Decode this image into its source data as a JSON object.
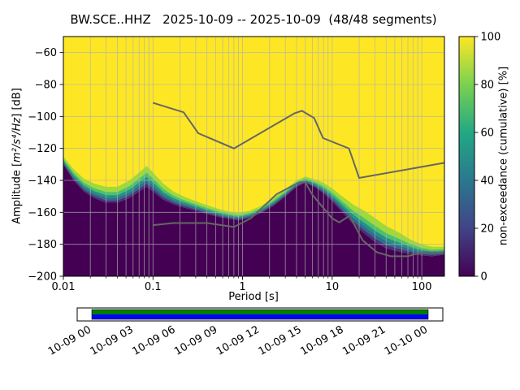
{
  "chart_data": {
    "type": "heatmap",
    "title": "BW.SCE..HHZ   2025-10-09 -- 2025-10-09  (48/48 segments)",
    "xlabel": "Period [s]",
    "ylabel_parts": [
      "Amplitude [",
      "m²/s⁴/Hz",
      "] [dB]"
    ],
    "xscale": "log",
    "grid": true,
    "xlim": [
      0.01,
      179
    ],
    "ylim": [
      -200,
      -50
    ],
    "xticks": {
      "values": [
        0.01,
        0.1,
        1,
        10,
        100
      ],
      "labels": [
        "0.01",
        "0.1",
        "1",
        "10",
        "100"
      ]
    },
    "yticks": {
      "values": [
        -200,
        -180,
        -160,
        -140,
        -120,
        -100,
        -80,
        -60
      ],
      "labels": [
        "−200",
        "−180",
        "−160",
        "−140",
        "−120",
        "−100",
        "−80",
        "−60"
      ]
    },
    "colors": {
      "grid": "#b0b0b0",
      "frame": "#000000",
      "noise_model": "#666666"
    },
    "colorbar": {
      "label": "non-exceedance (cumulative) [%]",
      "min": 0,
      "max": 100,
      "ticks": [
        0,
        20,
        40,
        60,
        80,
        100
      ],
      "colormap": "viridis",
      "gradient": [
        "#440154",
        "#414487",
        "#2a788e",
        "#22a884",
        "#7ad151",
        "#fde725"
      ]
    },
    "histogram": {
      "description": "cumulative PPSD non-exceedance field: yellow ~100% above transition, dark ~0% below dark_top_db; transition_width_db = dB span of viridis color transition",
      "color_high": "#fde725",
      "color_low": "#440154",
      "periods": [
        0.01,
        0.013,
        0.017,
        0.022,
        0.03,
        0.04,
        0.055,
        0.07,
        0.085,
        0.1,
        0.13,
        0.17,
        0.22,
        0.3,
        0.4,
        0.55,
        0.7,
        0.9,
        1.2,
        1.6,
        2.2,
        3,
        4,
        5,
        6.5,
        8,
        10,
        13,
        17,
        22,
        30,
        40,
        55,
        75,
        100,
        130,
        179
      ],
      "dark_top_db": [
        -130,
        -140,
        -147,
        -151,
        -154,
        -154,
        -151,
        -147,
        -144,
        -147,
        -152,
        -155,
        -157,
        -159,
        -161,
        -163,
        -164,
        -165,
        -163.5,
        -160.5,
        -156,
        -150,
        -144,
        -141.5,
        -144.5,
        -148,
        -153,
        -160,
        -167,
        -172.5,
        -178.5,
        -182.5,
        -184.5,
        -186,
        -187,
        -187.5,
        -186.5
      ],
      "transition_width_db": [
        5,
        7,
        8,
        9,
        10,
        10,
        11,
        12,
        13,
        12,
        10,
        8,
        7,
        6,
        5.5,
        5,
        4.5,
        4.5,
        4.5,
        4.5,
        5,
        4.5,
        4,
        4,
        5,
        6.5,
        8,
        10,
        12,
        14,
        15,
        14,
        12,
        9,
        7,
        6,
        5
      ],
      "transition_bands": [
        {
          "top": 1.0,
          "bottom": 0.68,
          "color": "#a0da39"
        },
        {
          "top": 0.68,
          "bottom": 0.48,
          "color": "#4ac16d"
        },
        {
          "top": 0.48,
          "bottom": 0.32,
          "color": "#21918c"
        },
        {
          "top": 0.32,
          "bottom": 0.15,
          "color": "#2c6e8e"
        },
        {
          "top": 0.15,
          "bottom": 0.0,
          "color": "#46327e"
        }
      ]
    },
    "noise_models": {
      "nhnm": {
        "periods": [
          0.1,
          0.22,
          0.32,
          0.8,
          3.8,
          4.6,
          6.3,
          7.9,
          15.4,
          20,
          179
        ],
        "db": [
          -91.5,
          -97.4,
          -110.5,
          -120,
          -98,
          -96.5,
          -101,
          -113.5,
          -120,
          -138.5,
          -129
        ]
      },
      "nlnm": {
        "periods": [
          0.1,
          0.17,
          0.4,
          0.8,
          1.24,
          2.4,
          4.3,
          5,
          6,
          10,
          12,
          15.6,
          21.9,
          31.6,
          45,
          70,
          101,
          154,
          179
        ],
        "db": [
          -168,
          -166.7,
          -166.7,
          -169.2,
          -163.7,
          -148.6,
          -141.1,
          -141.1,
          -149,
          -163.8,
          -166.3,
          -162.1,
          -177.5,
          -185,
          -187.5,
          -187.5,
          -185,
          -185,
          -185.5
        ]
      }
    },
    "timeline": {
      "tick_labels": [
        "10-09 00",
        "10-09 03",
        "10-09 06",
        "10-09 09",
        "10-09 12",
        "10-09 15",
        "10-09 18",
        "10-09 21",
        "10-10 00"
      ],
      "coverage_color_top": "#007f00",
      "coverage_color_bottom": "#0000ff",
      "background": "#ffffff"
    }
  }
}
